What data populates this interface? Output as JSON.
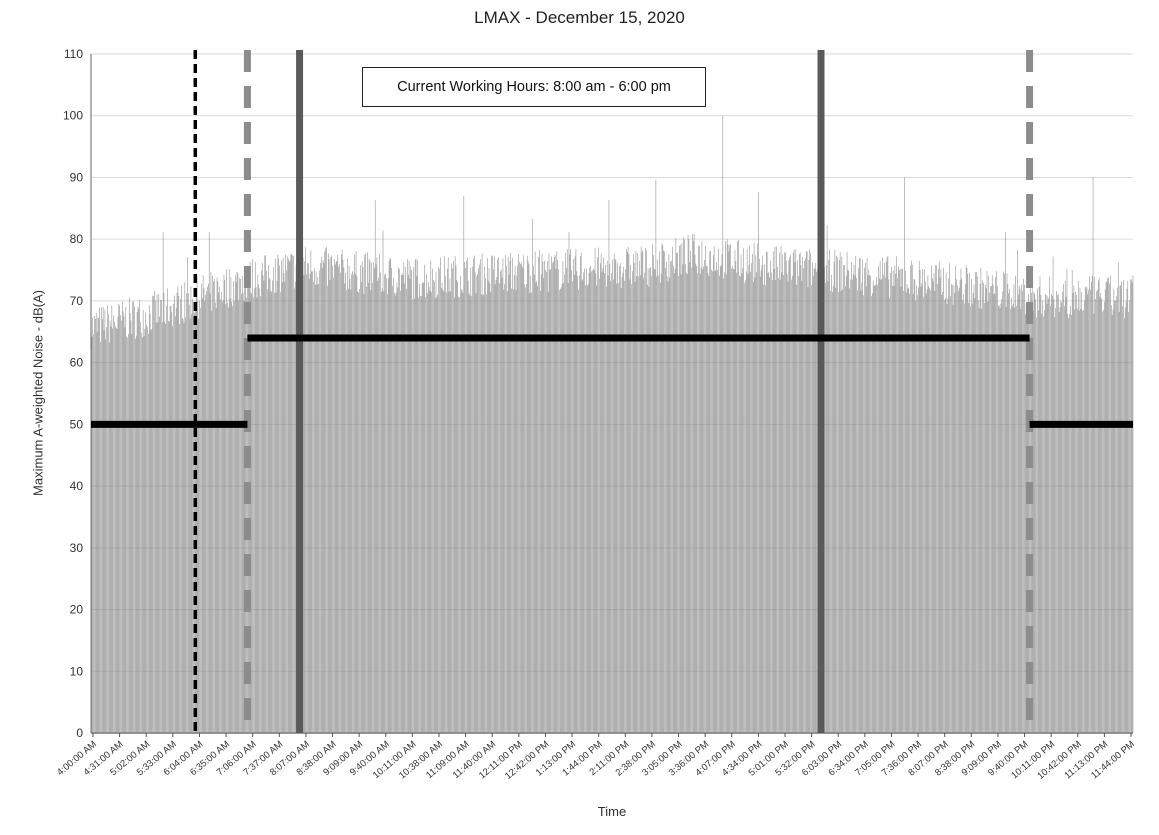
{
  "chart_data": {
    "type": "bar",
    "title": "LMAX - December 15, 2020",
    "xlabel": "Time",
    "ylabel": "Maximum A-weighted Noise - dB(A)",
    "ylim": [
      0,
      110
    ],
    "yticks": [
      0,
      10,
      20,
      30,
      40,
      50,
      60,
      70,
      80,
      90,
      100,
      110
    ],
    "grid": "horizontal",
    "x_tick_labels": [
      "4:00:00 AM",
      "4:31:00 AM",
      "5:02:00 AM",
      "5:33:00 AM",
      "6:04:00 AM",
      "6:35:00 AM",
      "7:06:00 AM",
      "7:37:00 AM",
      "8:07:00 AM",
      "8:38:00 AM",
      "9:09:00 AM",
      "9:40:00 AM",
      "10:11:00 AM",
      "10:38:00 AM",
      "11:09:00 AM",
      "11:40:00 AM",
      "12:11:00 PM",
      "12:42:00 PM",
      "1:13:00 PM",
      "1:44:00 PM",
      "2:11:00 PM",
      "2:38:00 PM",
      "3:05:00 PM",
      "3:36:00 PM",
      "4:07:00 PM",
      "4:34:00 PM",
      "5:01:00 PM",
      "5:32:00 PM",
      "6:03:00 PM",
      "6:34:00 PM",
      "7:05:00 PM",
      "7:36:00 PM",
      "8:07:00 PM",
      "8:38:00 PM",
      "9:09:00 PM",
      "9:40:00 PM",
      "10:11:00 PM",
      "10:42:00 PM",
      "11:13:00 PM",
      "11:44:00 PM"
    ],
    "series_profile": [
      {
        "time": "4:00:00 AM",
        "approx_db": 66
      },
      {
        "time": "5:02:00 AM",
        "approx_db": 68
      },
      {
        "time": "6:04:00 AM",
        "approx_db": 71
      },
      {
        "time": "7:06:00 AM",
        "approx_db": 74
      },
      {
        "time": "8:07:00 AM",
        "approx_db": 76
      },
      {
        "time": "10:11:00 AM",
        "approx_db": 74
      },
      {
        "time": "12:11:00 PM",
        "approx_db": 75
      },
      {
        "time": "2:38:00 PM",
        "approx_db": 76
      },
      {
        "time": "3:36:00 PM",
        "approx_db": 78
      },
      {
        "time": "5:01:00 PM",
        "approx_db": 76
      },
      {
        "time": "6:34:00 PM",
        "approx_db": 75
      },
      {
        "time": "8:38:00 PM",
        "approx_db": 73
      },
      {
        "time": "10:11:00 PM",
        "approx_db": 71
      },
      {
        "time": "11:44:00 PM",
        "approx_db": 71
      }
    ],
    "notable_peaks": [
      {
        "time": "4:07:00 PM",
        "value": 100
      },
      {
        "time": "11:13:00 PM",
        "value": 90
      },
      {
        "time": "7:36:00 PM",
        "value": 90
      },
      {
        "time": "11:09:00 AM",
        "value": 87
      }
    ],
    "threshold_lines": [
      {
        "from": "4:00:00 AM",
        "to": "7:00:00 AM",
        "value": 50
      },
      {
        "from": "7:00:00 AM",
        "to": "10:00:00 PM",
        "value": 64
      },
      {
        "from": "10:00:00 PM",
        "to": "11:59:00 PM",
        "value": 50
      }
    ],
    "vertical_markers": [
      {
        "time": "6:00:00 AM",
        "style": "black dashed"
      },
      {
        "time": "7:00:00 AM",
        "style": "gray dashed"
      },
      {
        "time": "8:00:00 AM",
        "style": "dark gray solid"
      },
      {
        "time": "6:00:00 PM",
        "style": "dark gray solid"
      },
      {
        "time": "10:00:00 PM",
        "style": "gray dashed"
      }
    ],
    "annotation": "Current Working Hours: 8:00 am - 6:00 pm"
  }
}
